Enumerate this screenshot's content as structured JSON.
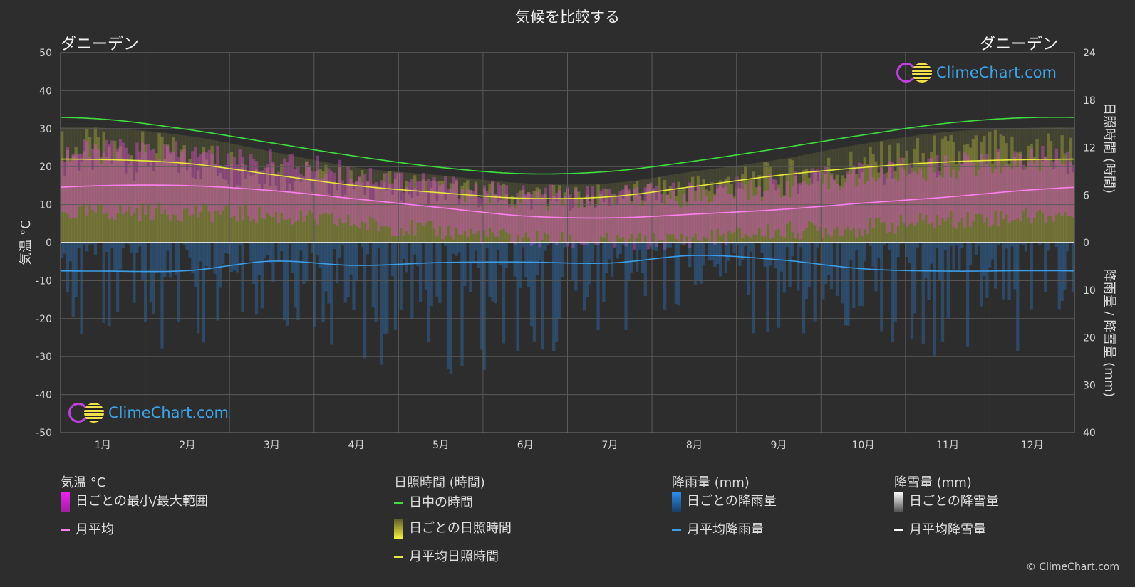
{
  "title": "気候を比較する",
  "location_left": "ダニーデン",
  "location_right": "ダニーデン",
  "copyright": "© ClimeChart.com",
  "logo_text": "ClimeChart.com",
  "colors": {
    "background": "#2d2d2d",
    "daylight": "#3ee03e",
    "sunshine_avg": "#e8e83a",
    "sunshine_daily": "#a8a83a",
    "temp_range": "#d050c0",
    "temp_avg": "#ff7ff0",
    "rain": "#2f7fd0",
    "rain_avg": "#3a9ee8",
    "snow": "#cccccc",
    "snow_avg": "#ffffff"
  },
  "legend": {
    "temperature": {
      "header": "気温 °C",
      "range": "日ごとの最小/最大範囲",
      "avg": "月平均"
    },
    "sunshine": {
      "header": "日照時間 (時間)",
      "daylight": "日中の時間",
      "daily": "日ごとの日照時間",
      "avg": "月平均日照時間"
    },
    "rain": {
      "header": "降雨量 (mm)",
      "daily": "日ごとの降雨量",
      "avg": "月平均降雨量"
    },
    "snow": {
      "header": "降雪量 (mm)",
      "daily": "日ごとの降雪量",
      "avg": "月平均降雪量"
    }
  },
  "chart_data": {
    "type": "line",
    "categories": [
      "1月",
      "2月",
      "3月",
      "4月",
      "5月",
      "6月",
      "7月",
      "8月",
      "9月",
      "10月",
      "11月",
      "12月"
    ],
    "y_left": {
      "label": "気温 °C",
      "ticks": [
        50,
        40,
        30,
        20,
        10,
        0,
        -10,
        -20,
        -30,
        -40,
        -50
      ],
      "range": [
        -50,
        50
      ]
    },
    "y_right_top": {
      "label": "日照時間 (時間)",
      "ticks": [
        24,
        18,
        12,
        6,
        0
      ],
      "range": [
        0,
        24
      ]
    },
    "y_right_bottom": {
      "label": "降雨量 / 降雪量 (mm)",
      "ticks": [
        0,
        10,
        20,
        30,
        40
      ],
      "range": [
        0,
        40
      ]
    },
    "grid": true,
    "series": [
      {
        "name": "日中の時間",
        "unit": "hours",
        "values": [
          15.6,
          14.3,
          12.6,
          10.9,
          9.5,
          8.7,
          9.0,
          10.3,
          11.9,
          13.6,
          15.1,
          15.8
        ]
      },
      {
        "name": "月平均日照時間",
        "unit": "hours",
        "values": [
          10.5,
          10.0,
          8.6,
          7.2,
          6.3,
          5.6,
          5.8,
          7.1,
          8.5,
          9.5,
          10.2,
          10.5
        ]
      },
      {
        "name": "月平均",
        "unit": "°C",
        "values": [
          15.0,
          15.0,
          13.7,
          11.5,
          9.2,
          7.0,
          6.5,
          7.5,
          8.7,
          10.4,
          12.0,
          13.9
        ]
      },
      {
        "name": "月平均降雨量",
        "unit": "mm",
        "values": [
          6.0,
          5.9,
          3.9,
          4.8,
          4.2,
          4.1,
          4.3,
          2.7,
          3.6,
          5.5,
          6.0,
          5.9
        ]
      },
      {
        "name": "月平均降雪量",
        "unit": "mm",
        "values": [
          0,
          0,
          0,
          0,
          0,
          0,
          0,
          0,
          0,
          0,
          0,
          0
        ]
      }
    ],
    "daily_temp_range_typical": {
      "min": [
        8,
        8,
        7,
        5,
        3,
        1,
        0,
        1,
        3,
        4,
        6,
        7
      ],
      "max": [
        24,
        23,
        21,
        18,
        15,
        12,
        12,
        13,
        15,
        18,
        20,
        22
      ]
    },
    "daily_sunshine_max_hours": [
      14.5,
      13.5,
      11.5,
      9.5,
      8.5,
      7.5,
      7.5,
      9.0,
      10.5,
      12.5,
      14.0,
      14.5
    ],
    "daily_rain_max_mm": [
      25,
      22,
      20,
      24,
      30,
      25,
      20,
      18,
      20,
      22,
      25,
      24
    ]
  }
}
